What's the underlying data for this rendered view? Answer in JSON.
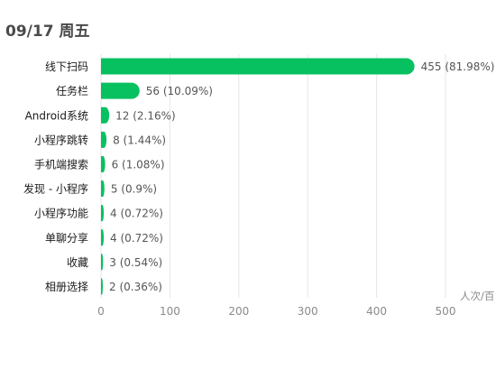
{
  "header": {
    "date_label": "09/17 周五"
  },
  "chart_data": {
    "type": "bar",
    "orientation": "horizontal",
    "categories": [
      "线下扫码",
      "任务栏",
      "Android系统",
      "小程序跳转",
      "手机端搜索",
      "发现 - 小程序",
      "小程序功能",
      "单聊分享",
      "收藏",
      "相册选择"
    ],
    "values": [
      455,
      56,
      12,
      8,
      6,
      5,
      4,
      4,
      3,
      2
    ],
    "value_labels": [
      "455 (81.98%)",
      "56 (10.09%)",
      "12 (2.16%)",
      "8 (1.44%)",
      "6 (1.08%)",
      "5 (0.9%)",
      "4 (0.72%)",
      "4 (0.72%)",
      "3 (0.54%)",
      "2 (0.36%)"
    ],
    "xticks": [
      0,
      100,
      200,
      300,
      400,
      500
    ],
    "xlim": [
      0,
      500
    ],
    "unit_label": "人次/百",
    "grid": "vertical",
    "bar_color": "#07c160"
  }
}
